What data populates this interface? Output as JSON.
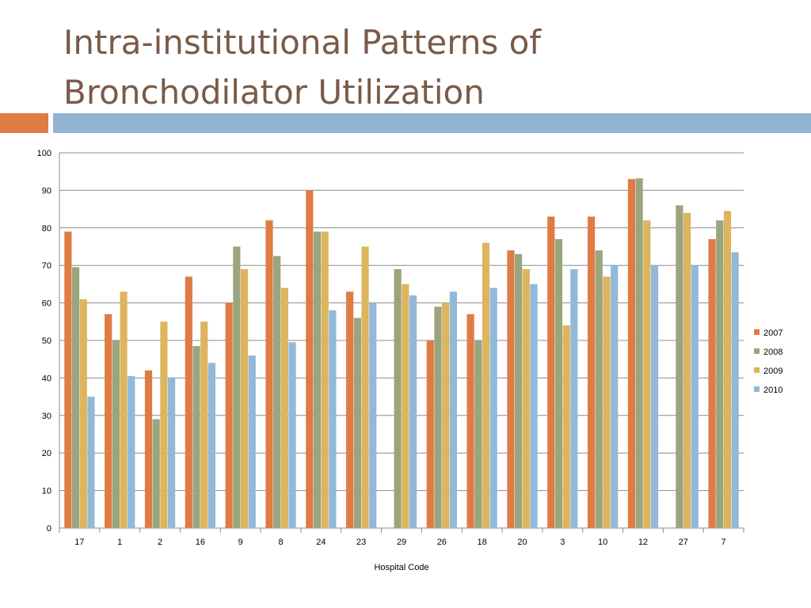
{
  "slide": {
    "title_line1": "Intra-institutional Patterns of",
    "title_line2": "Bronchodilator Utilization"
  },
  "colors": {
    "title": "#7a5a48",
    "accent_orange": "#e07b46",
    "accent_blue": "#93b5d3"
  },
  "chart_data": {
    "type": "bar",
    "title": "",
    "xlabel": "Hospital Code",
    "ylabel": "",
    "ylim": [
      0,
      100
    ],
    "yticks": [
      0,
      10,
      20,
      30,
      40,
      50,
      60,
      70,
      80,
      90,
      100
    ],
    "grid": true,
    "legend_position": "right",
    "categories": [
      "17",
      "1",
      "2",
      "16",
      "9",
      "8",
      "24",
      "23",
      "29",
      "26",
      "18",
      "20",
      "3",
      "10",
      "12",
      "27",
      "7"
    ],
    "series": [
      {
        "name": "2007",
        "color": "#e07b46",
        "values": [
          79,
          57,
          42,
          67,
          60,
          82,
          90,
          63,
          null,
          50,
          57,
          74,
          83,
          83,
          93,
          null,
          77
        ]
      },
      {
        "name": "2008",
        "color": "#9aa57d",
        "values": [
          69.5,
          50,
          29,
          48.5,
          75,
          72.5,
          79,
          56,
          69,
          59,
          50,
          73,
          77,
          74,
          93.2,
          86,
          82
        ]
      },
      {
        "name": "2009",
        "color": "#ddb55f",
        "values": [
          61,
          63,
          55,
          55,
          69,
          64,
          79,
          75,
          65,
          60,
          76,
          69,
          54,
          67,
          82,
          84,
          84.5
        ]
      },
      {
        "name": "2010",
        "color": "#92b9d8",
        "values": [
          35,
          40.5,
          40,
          44,
          46,
          49.5,
          58,
          60,
          62,
          63,
          64,
          65,
          69,
          70,
          70,
          70,
          73.5
        ]
      }
    ]
  }
}
